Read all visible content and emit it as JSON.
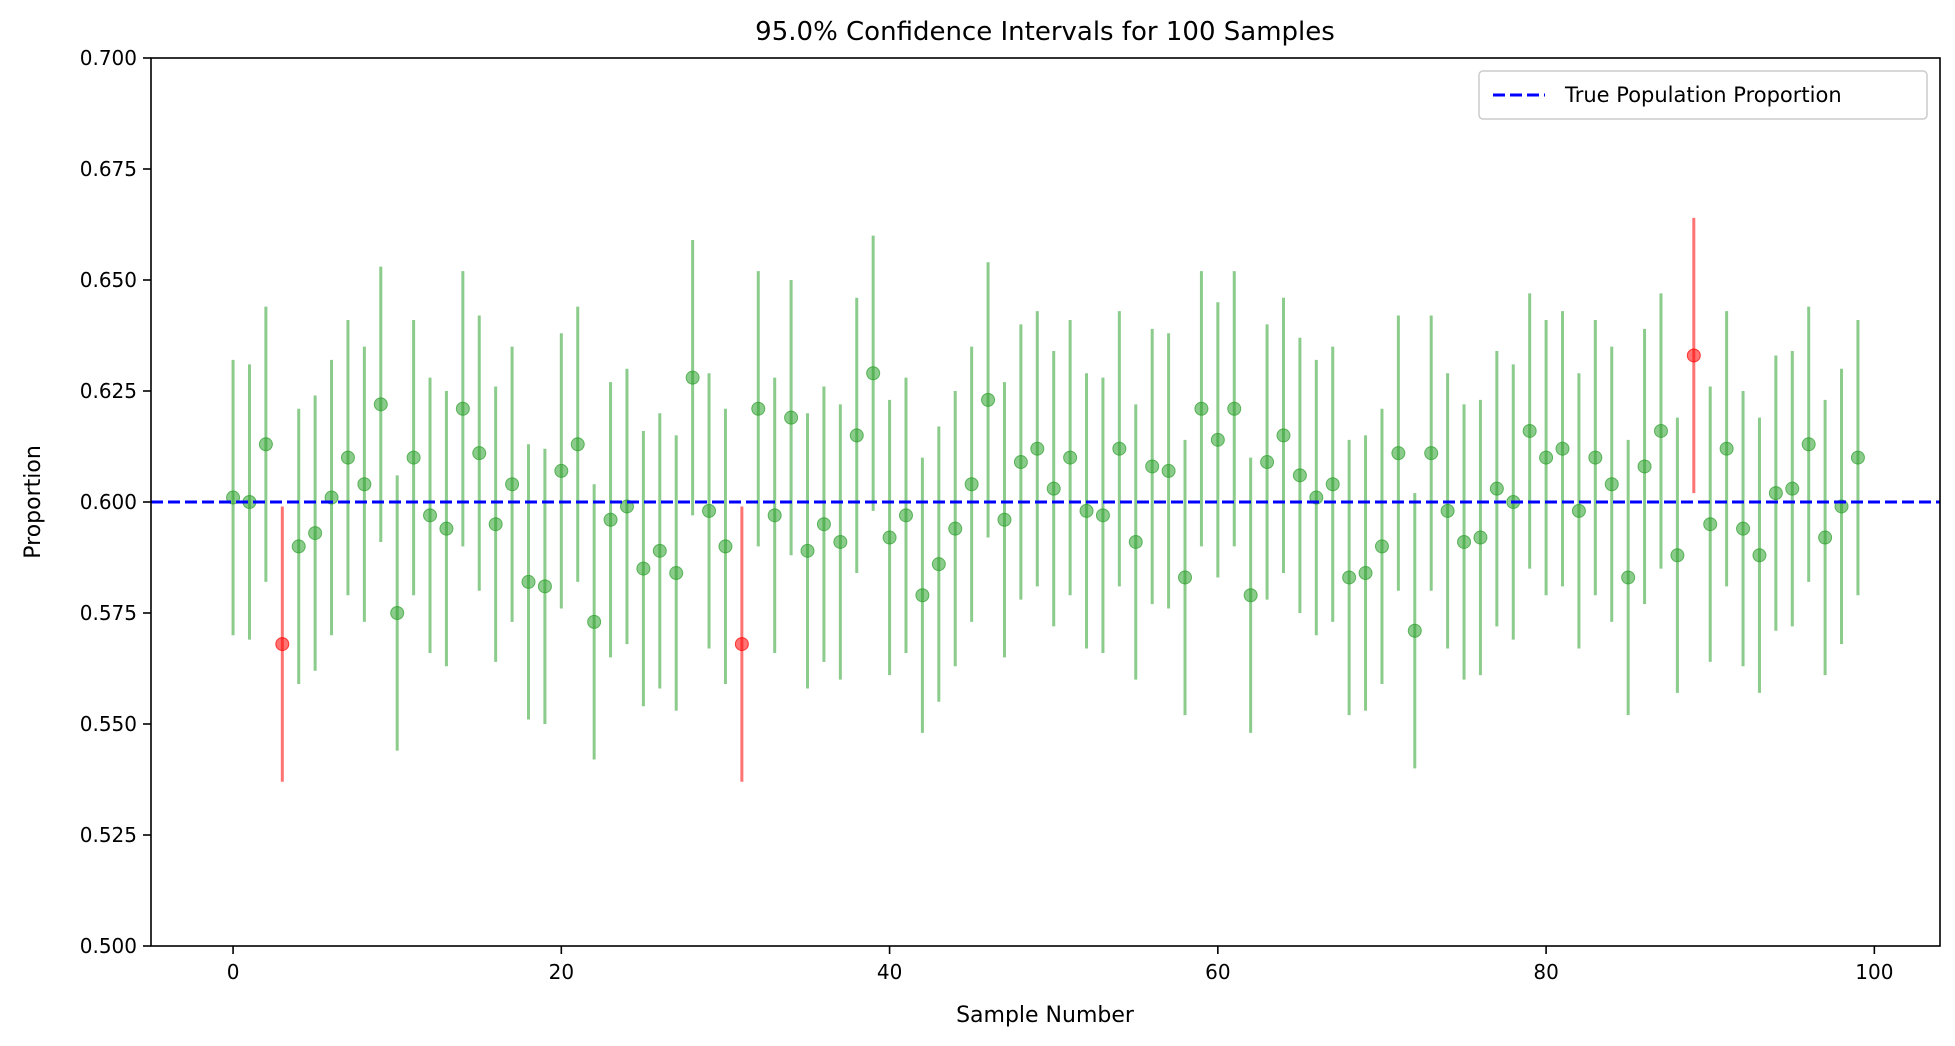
{
  "chart_data": {
    "type": "scatter",
    "title": "95.0% Confidence Intervals for 100 Samples",
    "xlabel": "Sample Number",
    "ylabel": "Proportion",
    "xlim": [
      -5,
      104
    ],
    "ylim": [
      0.5,
      0.7
    ],
    "xticks": [
      0,
      20,
      40,
      60,
      80,
      100
    ],
    "yticks": [
      0.5,
      0.525,
      0.55,
      0.575,
      0.6,
      0.625,
      0.65,
      0.675,
      0.7
    ],
    "xtick_labels": [
      "0",
      "20",
      "40",
      "60",
      "80",
      "100"
    ],
    "ytick_labels": [
      "0.500",
      "0.525",
      "0.550",
      "0.575",
      "0.600",
      "0.625",
      "0.650",
      "0.675",
      "0.700"
    ],
    "grid": false,
    "legend": {
      "placement": "top-right",
      "entries": [
        "True Population Proportion"
      ]
    },
    "reference_line": {
      "name": "True Population Proportion",
      "y": 0.6,
      "style": "dashed",
      "color": "#0000ff"
    },
    "margin_of_error": 0.031,
    "colors": {
      "covers": "#2ca02c",
      "misses": "#ff0000",
      "reference": "#0000ff"
    },
    "series": [
      {
        "x": [
          0,
          1,
          2,
          3,
          4,
          5,
          6,
          7,
          8,
          9,
          10,
          11,
          12,
          13,
          14,
          15,
          16,
          17,
          18,
          19,
          20,
          21,
          22,
          23,
          24,
          25,
          26,
          27,
          28,
          29,
          30,
          31,
          32,
          33,
          34,
          35,
          36,
          37,
          38,
          39,
          40,
          41,
          42,
          43,
          44,
          45,
          46,
          47,
          48,
          49,
          50,
          51,
          52,
          53,
          54,
          55,
          56,
          57,
          58,
          59,
          60,
          61,
          62,
          63,
          64,
          65,
          66,
          67,
          68,
          69,
          70,
          71,
          72,
          73,
          74,
          75,
          76,
          77,
          78,
          79,
          80,
          81,
          82,
          83,
          84,
          85,
          86,
          87,
          88,
          89,
          90,
          91,
          92,
          93,
          94,
          95,
          96,
          97,
          98,
          99
        ],
        "values": [
          0.601,
          0.6,
          0.613,
          0.568,
          0.59,
          0.593,
          0.601,
          0.61,
          0.604,
          0.622,
          0.575,
          0.61,
          0.597,
          0.594,
          0.621,
          0.611,
          0.595,
          0.604,
          0.582,
          0.581,
          0.607,
          0.613,
          0.573,
          0.596,
          0.599,
          0.585,
          0.589,
          0.584,
          0.628,
          0.598,
          0.59,
          0.568,
          0.621,
          0.597,
          0.619,
          0.589,
          0.595,
          0.591,
          0.615,
          0.629,
          0.592,
          0.597,
          0.579,
          0.586,
          0.594,
          0.604,
          0.623,
          0.596,
          0.609,
          0.612,
          0.603,
          0.61,
          0.598,
          0.597,
          0.612,
          0.591,
          0.608,
          0.607,
          0.583,
          0.621,
          0.614,
          0.621,
          0.579,
          0.609,
          0.615,
          0.606,
          0.601,
          0.604,
          0.583,
          0.584,
          0.59,
          0.611,
          0.571,
          0.611,
          0.598,
          0.591,
          0.592,
          0.603,
          0.6,
          0.616,
          0.61,
          0.612,
          0.598,
          0.61,
          0.604,
          0.583,
          0.608,
          0.616,
          0.588,
          0.633,
          0.595,
          0.612,
          0.594,
          0.588,
          0.602,
          0.603,
          0.613,
          0.592,
          0.599,
          0.61
        ]
      }
    ]
  }
}
